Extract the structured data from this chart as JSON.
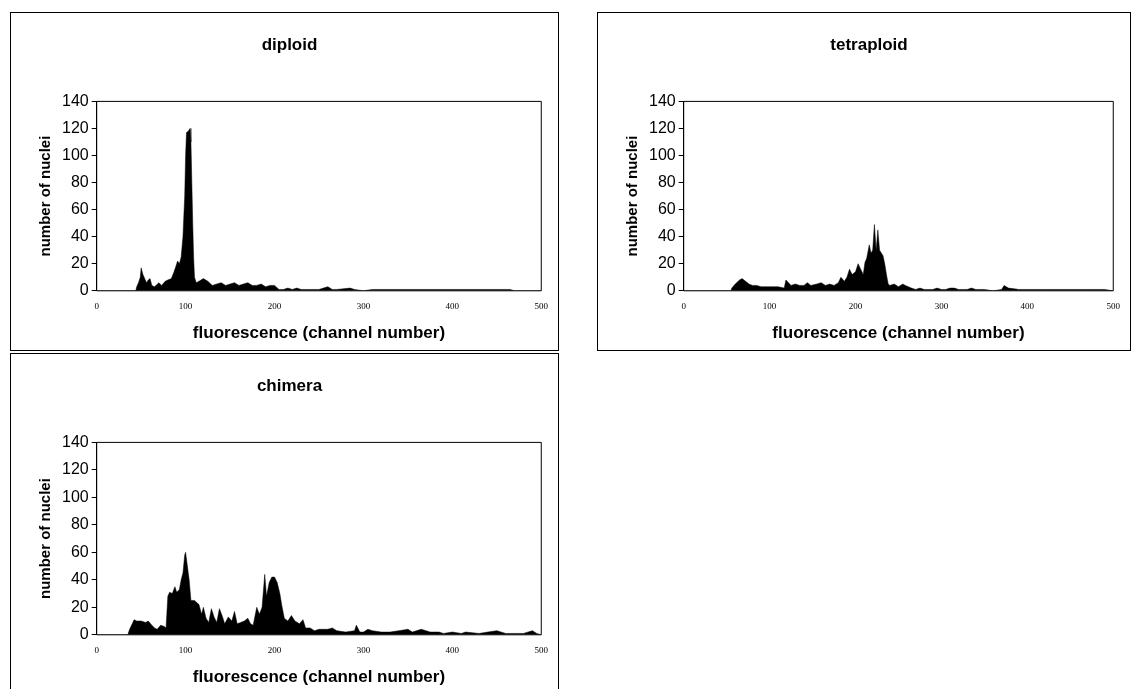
{
  "chart_data": [
    {
      "type": "area",
      "title": "diploid",
      "xlabel": "fluorescence (channel number)",
      "ylabel": "number of nuclei",
      "color": "#000000",
      "grid": false,
      "marker": "none",
      "xlim": [
        0,
        500
      ],
      "xticks": [
        0,
        100,
        200,
        300,
        400,
        500
      ],
      "ylim": [
        0,
        140
      ],
      "yticks": [
        0,
        20,
        40,
        60,
        80,
        100,
        120,
        140
      ],
      "x": [
        0,
        44,
        45,
        47,
        49,
        50,
        52,
        54,
        56,
        58,
        60,
        62,
        65,
        70,
        73,
        77,
        80,
        84,
        87,
        89,
        91,
        93,
        95,
        97,
        99,
        100,
        101,
        103,
        105,
        106,
        107,
        108,
        109,
        110,
        112,
        115,
        120,
        125,
        130,
        135,
        140,
        145,
        150,
        155,
        160,
        165,
        170,
        175,
        180,
        185,
        190,
        195,
        200,
        205,
        210,
        215,
        220,
        225,
        230,
        235,
        240,
        250,
        255,
        260,
        265,
        270,
        285,
        290,
        300,
        310,
        320,
        340,
        345,
        355,
        370,
        395,
        405,
        415,
        450,
        465,
        470,
        500
      ],
      "values": [
        0,
        0,
        3,
        6,
        10,
        17,
        12,
        9,
        6,
        8,
        9,
        4,
        3,
        6,
        4,
        7,
        8,
        9,
        14,
        18,
        22,
        20,
        25,
        40,
        70,
        100,
        117,
        118,
        120,
        110,
        80,
        50,
        25,
        10,
        6,
        7,
        9,
        7,
        4,
        5,
        6,
        4,
        5,
        6,
        4,
        5,
        6,
        4,
        4,
        5,
        3,
        4,
        4,
        1,
        1,
        2,
        1,
        2,
        1,
        1,
        1,
        1,
        2,
        3,
        1,
        1,
        2,
        1,
        0,
        1,
        1,
        1,
        1,
        1,
        1,
        1,
        1,
        1,
        1,
        1,
        0,
        0
      ]
    },
    {
      "type": "area",
      "title": "tetraploid",
      "xlabel": "fluorescence (channel number)",
      "ylabel": "number of nuclei",
      "color": "#000000",
      "grid": false,
      "marker": "none",
      "xlim": [
        0,
        500
      ],
      "xticks": [
        0,
        100,
        200,
        300,
        400,
        500
      ],
      "ylim": [
        0,
        140
      ],
      "yticks": [
        0,
        20,
        40,
        60,
        80,
        100,
        120,
        140
      ],
      "x": [
        0,
        55,
        56,
        60,
        65,
        68,
        72,
        76,
        80,
        85,
        90,
        100,
        110,
        117,
        119,
        122,
        125,
        130,
        135,
        140,
        144,
        148,
        155,
        160,
        165,
        170,
        175,
        180,
        183,
        187,
        190,
        193,
        196,
        200,
        203,
        206,
        209,
        211,
        213,
        216,
        218,
        220,
        222,
        224,
        226,
        228,
        230,
        232,
        234,
        236,
        238,
        240,
        245,
        250,
        255,
        258,
        265,
        270,
        275,
        280,
        290,
        295,
        300,
        305,
        310,
        315,
        320,
        330,
        335,
        340,
        350,
        360,
        370,
        373,
        378,
        390,
        400,
        410,
        420,
        430,
        440,
        455,
        470,
        490,
        500
      ],
      "values": [
        0,
        0,
        2,
        5,
        8,
        9,
        7,
        5,
        4,
        4,
        3,
        3,
        3,
        2,
        8,
        6,
        4,
        5,
        4,
        4,
        6,
        4,
        5,
        6,
        4,
        5,
        4,
        6,
        10,
        7,
        10,
        16,
        12,
        14,
        20,
        16,
        12,
        21,
        24,
        34,
        28,
        30,
        49,
        30,
        45,
        30,
        28,
        26,
        20,
        12,
        5,
        4,
        5,
        3,
        5,
        4,
        2,
        1,
        2,
        1,
        1,
        2,
        1,
        1,
        2,
        2,
        1,
        1,
        2,
        1,
        1,
        0,
        1,
        4,
        2,
        1,
        1,
        1,
        1,
        1,
        1,
        1,
        1,
        1,
        0
      ]
    },
    {
      "type": "area",
      "title": "chimera",
      "xlabel": "fluorescence (channel number)",
      "ylabel": "number of nuclei",
      "color": "#000000",
      "grid": false,
      "marker": "none",
      "xlim": [
        0,
        500
      ],
      "xticks": [
        0,
        100,
        200,
        300,
        400,
        500
      ],
      "ylim": [
        0,
        140
      ],
      "yticks": [
        0,
        20,
        40,
        60,
        80,
        100,
        120,
        140
      ],
      "x": [
        0,
        35,
        37,
        40,
        42,
        45,
        50,
        55,
        58,
        62,
        65,
        68,
        72,
        76,
        78,
        80,
        82,
        85,
        88,
        90,
        93,
        95,
        97,
        99,
        100,
        102,
        104,
        106,
        110,
        115,
        118,
        120,
        123,
        126,
        129,
        132,
        135,
        138,
        141,
        144,
        148,
        152,
        155,
        158,
        162,
        166,
        170,
        173,
        176,
        180,
        183,
        186,
        189,
        191,
        194,
        197,
        200,
        203,
        206,
        208,
        211,
        215,
        219,
        223,
        228,
        232,
        235,
        240,
        245,
        250,
        260,
        265,
        270,
        280,
        290,
        292,
        296,
        300,
        305,
        310,
        320,
        330,
        340,
        350,
        355,
        365,
        375,
        385,
        390,
        400,
        410,
        415,
        430,
        440,
        450,
        460,
        470,
        480,
        490,
        495,
        500
      ],
      "values": [
        0,
        0,
        4,
        8,
        11,
        10,
        10,
        9,
        10,
        7,
        5,
        4,
        7,
        6,
        5,
        28,
        31,
        30,
        35,
        31,
        33,
        40,
        45,
        58,
        60,
        50,
        40,
        25,
        25,
        22,
        15,
        20,
        12,
        9,
        19,
        13,
        9,
        19,
        14,
        8,
        13,
        10,
        17,
        8,
        9,
        10,
        12,
        8,
        7,
        20,
        15,
        20,
        44,
        28,
        38,
        42,
        42,
        38,
        30,
        22,
        12,
        10,
        14,
        10,
        8,
        11,
        5,
        5,
        3,
        4,
        4,
        5,
        3,
        2,
        3,
        7,
        2,
        2,
        4,
        3,
        2,
        2,
        3,
        4,
        2,
        4,
        2,
        2,
        1,
        2,
        1,
        2,
        1,
        2,
        3,
        1,
        1,
        1,
        3,
        1,
        0
      ]
    }
  ]
}
